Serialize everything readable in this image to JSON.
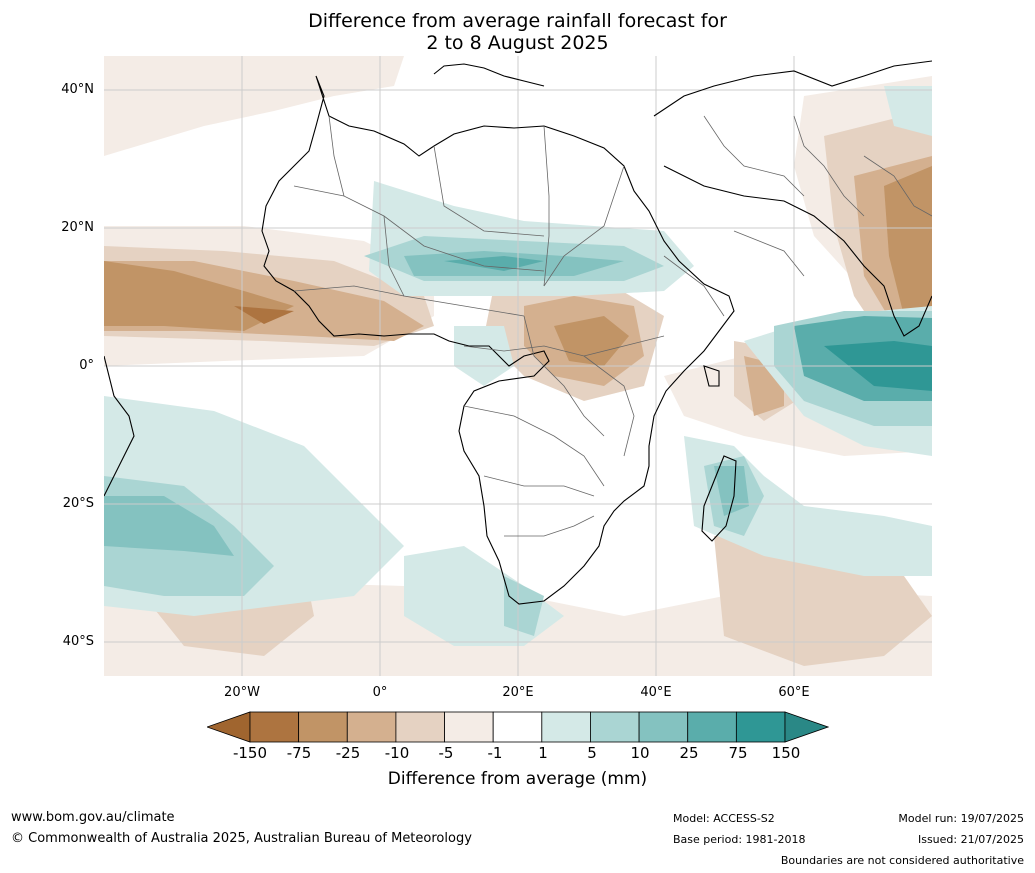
{
  "title": {
    "line1": "Difference from average rainfall forecast for",
    "line2": "2 to 8 August 2025"
  },
  "axes": {
    "lat_labels": [
      "40°N",
      "20°N",
      "0°",
      "20°S",
      "40°S"
    ],
    "lon_labels": [
      "20°W",
      "0°",
      "20°E",
      "40°E",
      "60°E"
    ]
  },
  "colorbar": {
    "ticks": [
      "-150",
      "-75",
      "-25",
      "-10",
      "-5",
      "-1",
      "1",
      "5",
      "10",
      "25",
      "75",
      "150"
    ],
    "colors": [
      "#a0652f",
      "#ad7440",
      "#c19466",
      "#d4b08f",
      "#e5d2c2",
      "#f4ece6",
      "#ffffff",
      "#d4e9e7",
      "#aad5d3",
      "#84c2c0",
      "#5aadab",
      "#2f9795",
      "#2a8886"
    ],
    "label": "Difference from average (mm)"
  },
  "footer": {
    "website": "www.bom.gov.au/climate",
    "copyright": "© Commonwealth of Australia 2025, Australian Bureau of Meteorology",
    "model": "Model: ACCESS-S2",
    "base_period": "Base period: 1981-2018",
    "model_run": "Model run: 19/07/2025",
    "issued": "Issued: 21/07/2025",
    "disclaimer": "Boundaries are not considered authoritative"
  }
}
